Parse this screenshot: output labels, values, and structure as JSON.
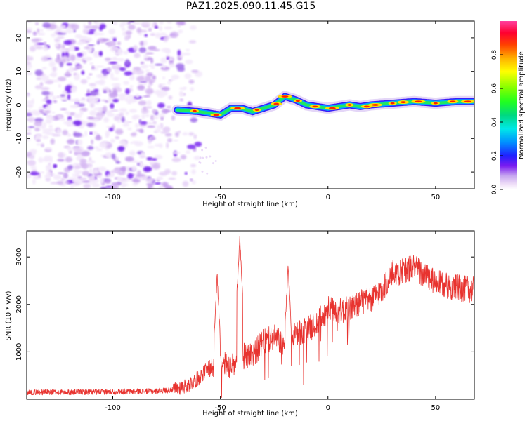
{
  "title": "PAZ1.2025.090.11.45.G15",
  "chart_data": [
    {
      "type": "heatmap",
      "xlabel": "Height of straight line (km)",
      "ylabel": "Frequency (Hz)",
      "xlim": [
        -140,
        68
      ],
      "ylim": [
        -25,
        25
      ],
      "xticks": [
        -100,
        -50,
        0,
        50
      ],
      "yticks": [
        -20,
        -10,
        0,
        10,
        20
      ],
      "colorbar": {
        "label": "Normalized spectral amplitude",
        "range": [
          0,
          1
        ],
        "ticks": [
          0.0,
          0.2,
          0.4,
          0.6,
          0.8
        ],
        "colormap": "gist_ncar"
      },
      "trace": {
        "description": "ridge",
        "points": [
          [
            -70,
            -1.5
          ],
          [
            -60,
            -2
          ],
          [
            -50,
            -3
          ],
          [
            -45,
            -1
          ],
          [
            -40,
            -1
          ],
          [
            -35,
            -2
          ],
          [
            -30,
            -1
          ],
          [
            -25,
            0
          ],
          [
            -20,
            2.5
          ],
          [
            -15,
            1.5
          ],
          [
            -10,
            0
          ],
          [
            -5,
            -0.5
          ],
          [
            0,
            -1
          ],
          [
            5,
            -0.5
          ],
          [
            10,
            0
          ],
          [
            15,
            -0.5
          ],
          [
            20,
            0
          ],
          [
            30,
            0.5
          ],
          [
            40,
            1
          ],
          [
            50,
            0.5
          ],
          [
            60,
            1
          ],
          [
            68,
            1
          ]
        ]
      },
      "noise_region": [
        -140,
        -60
      ]
    },
    {
      "type": "line",
      "xlabel": "Height of straight line (km)",
      "ylabel": "SNR (10 * v/v)",
      "xlim": [
        -140,
        68
      ],
      "ylim": [
        0,
        3550
      ],
      "xticks": [
        -100,
        -50,
        0,
        50
      ],
      "yticks": [
        1000,
        2000,
        3000
      ],
      "series": [
        {
          "name": "SNR",
          "color": "#e8332f",
          "anchors": [
            [
              -140,
              150
            ],
            [
              -120,
              150
            ],
            [
              -100,
              160
            ],
            [
              -80,
              170
            ],
            [
              -72,
              200
            ],
            [
              -65,
              300
            ],
            [
              -60,
              450
            ],
            [
              -55,
              700
            ],
            [
              -50,
              800
            ],
            [
              -45,
              650
            ],
            [
              -40,
              900
            ],
            [
              -35,
              950
            ],
            [
              -30,
              1200
            ],
            [
              -25,
              1300
            ],
            [
              -20,
              1150
            ],
            [
              -15,
              1350
            ],
            [
              -10,
              1450
            ],
            [
              -5,
              1600
            ],
            [
              0,
              1900
            ],
            [
              5,
              1850
            ],
            [
              10,
              1900
            ],
            [
              15,
              2050
            ],
            [
              20,
              2100
            ],
            [
              25,
              2300
            ],
            [
              30,
              2650
            ],
            [
              35,
              2700
            ],
            [
              40,
              2800
            ],
            [
              45,
              2600
            ],
            [
              50,
              2450
            ],
            [
              55,
              2400
            ],
            [
              60,
              2350
            ],
            [
              68,
              2300
            ]
          ],
          "spikes": [
            [
              -51.5,
              2700
            ],
            [
              -41,
              3500
            ],
            [
              -18.5,
              2900
            ]
          ]
        }
      ]
    }
  ]
}
